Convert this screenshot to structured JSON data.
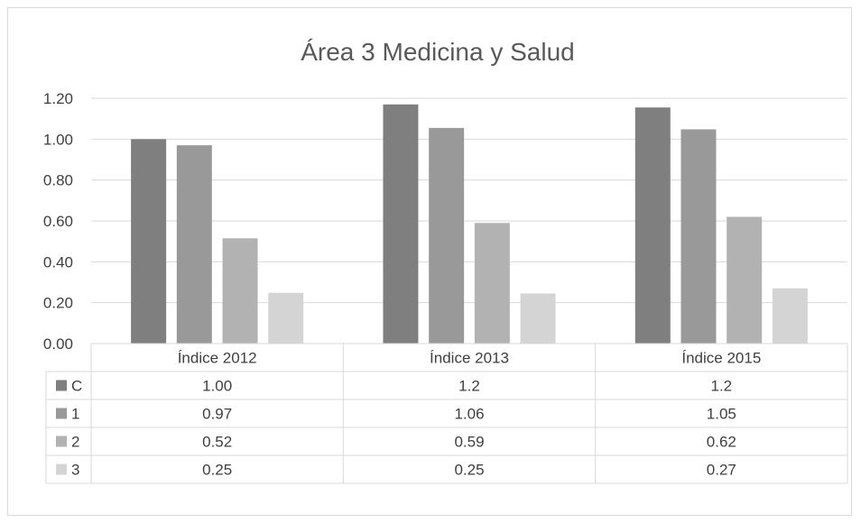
{
  "chart_data": {
    "type": "bar",
    "title": "Área 3 Medicina y Salud",
    "categories": [
      "Índice 2012",
      "Índice 2013",
      "Índice 2015"
    ],
    "series": [
      {
        "name": "C",
        "values": [
          1.0,
          1.17,
          1.155
        ],
        "table_labels": [
          "1.00",
          "1.2",
          "1.2"
        ],
        "color": "#7f7f7f"
      },
      {
        "name": "1",
        "values": [
          0.97,
          1.055,
          1.048
        ],
        "table_labels": [
          "0.97",
          "1.06",
          "1.05"
        ],
        "color": "#999999"
      },
      {
        "name": "2",
        "values": [
          0.515,
          0.59,
          0.62
        ],
        "table_labels": [
          "0.52",
          "0.59",
          "0.62"
        ],
        "color": "#b2b2b2"
      },
      {
        "name": "3",
        "values": [
          0.248,
          0.245,
          0.27
        ],
        "table_labels": [
          "0.25",
          "0.25",
          "0.27"
        ],
        "color": "#d4d4d4"
      }
    ],
    "y_ticks": [
      "0.00",
      "0.20",
      "0.40",
      "0.60",
      "0.80",
      "1.00",
      "1.20"
    ],
    "ylim": [
      0,
      1.2
    ],
    "grid": true,
    "legend": "data-table"
  }
}
